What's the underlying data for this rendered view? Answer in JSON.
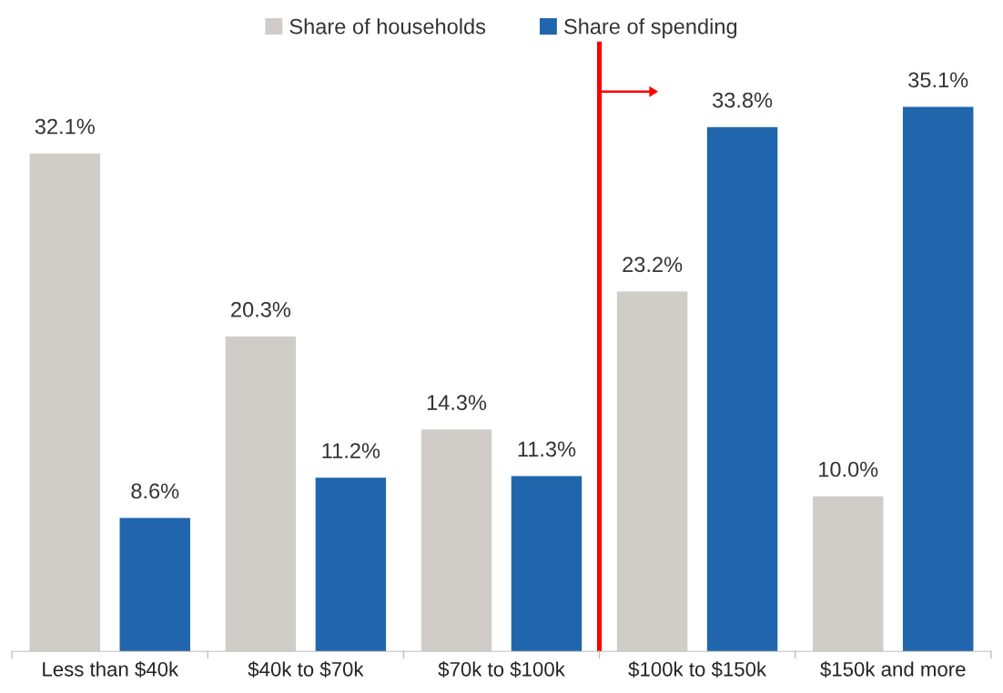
{
  "chart_data": {
    "type": "bar",
    "categories": [
      "Less than $40k",
      "$40k to $70k",
      "$70k to $100k",
      "$100k to $150k",
      "$150k and more"
    ],
    "series": [
      {
        "name": "Share of households",
        "color": "#d0cdc8",
        "values": [
          32.1,
          20.3,
          14.3,
          23.2,
          10.0
        ],
        "value_labels": [
          "32.1%",
          "20.3%",
          "14.3%",
          "23.2%",
          "10.0%"
        ]
      },
      {
        "name": "Share of spending",
        "color": "#2166ac",
        "values": [
          8.6,
          11.2,
          11.3,
          33.8,
          35.1
        ],
        "value_labels": [
          "8.6%",
          "11.2%",
          "11.3%",
          "33.8%",
          "35.1%"
        ]
      }
    ],
    "legend": "top",
    "grid": false
  }
}
